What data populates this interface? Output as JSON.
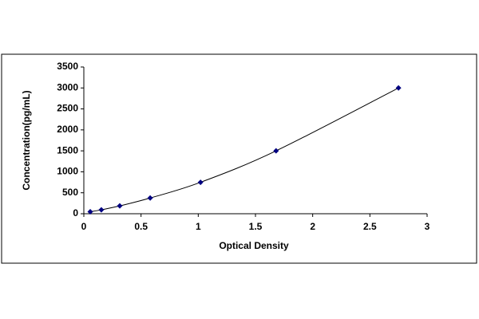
{
  "chart_data": {
    "type": "scatter",
    "x_label": "Optical Density",
    "y_label": "Concentration(pg/mL)",
    "series": [
      {
        "color": "#000080",
        "x": [
          0.056,
          0.153,
          0.314,
          0.58,
          1.02,
          1.68,
          2.75
        ],
        "values": [
          46.9,
          93.75,
          187.5,
          375,
          750,
          1500,
          3000
        ]
      }
    ],
    "xlim": [
      0,
      3
    ],
    "xticks": [
      0,
      0.5,
      1,
      1.5,
      2,
      2.5,
      3
    ],
    "ylim": [
      0,
      3500
    ],
    "yticks": [
      0,
      500,
      1000,
      1500,
      2000,
      2500,
      3000,
      3500
    ],
    "grid": false,
    "trendline": true
  }
}
